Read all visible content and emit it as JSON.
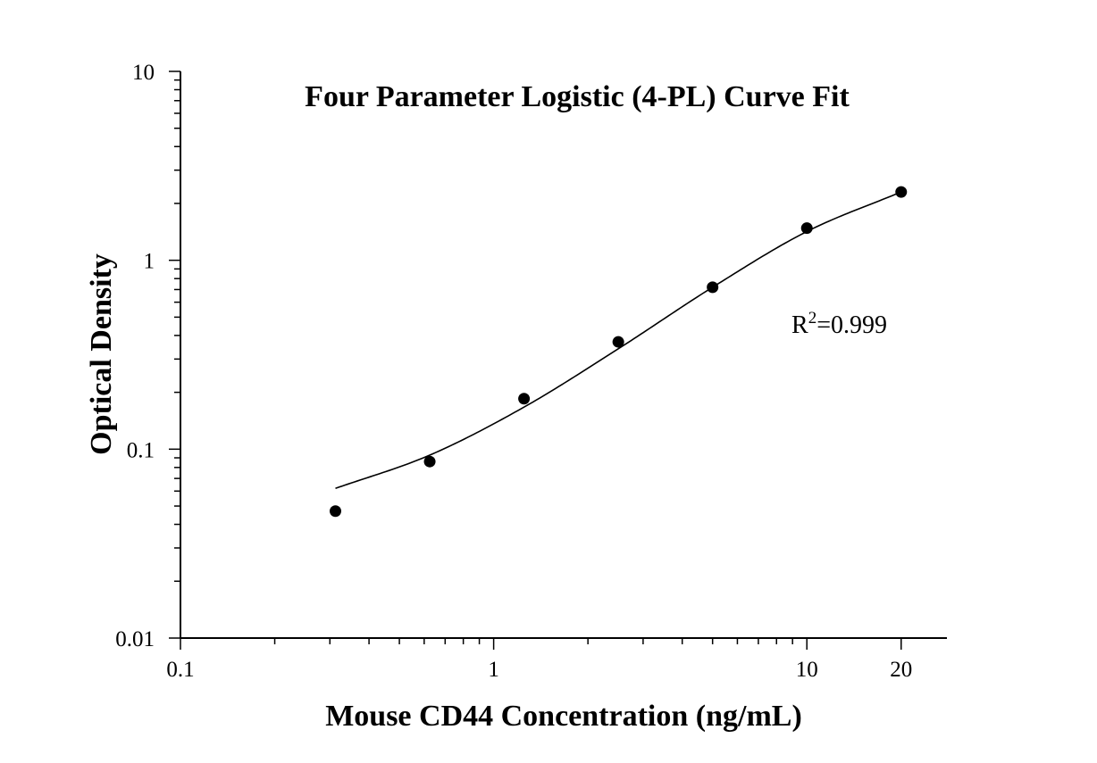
{
  "chart_data": {
    "type": "scatter",
    "title": "Four Parameter Logistic (4-PL) Curve Fit",
    "xlabel": "Mouse CD44 Concentration (ng/mL)",
    "ylabel": "Optical Density",
    "x_scale": "log",
    "y_scale": "log",
    "xlim": [
      0.1,
      28
    ],
    "ylim": [
      0.01,
      10
    ],
    "x_ticks": [
      {
        "value": 0.1,
        "label": "0.1"
      },
      {
        "value": 1,
        "label": "1"
      },
      {
        "value": 10,
        "label": "10"
      },
      {
        "value": 20,
        "label": "20"
      }
    ],
    "y_ticks": [
      {
        "value": 0.01,
        "label": "0.01"
      },
      {
        "value": 0.1,
        "label": "0.1"
      },
      {
        "value": 1,
        "label": "1"
      },
      {
        "value": 10,
        "label": "10"
      }
    ],
    "points": {
      "x": [
        0.3125,
        0.625,
        1.25,
        2.5,
        5,
        10,
        20
      ],
      "y": [
        0.047,
        0.086,
        0.185,
        0.37,
        0.72,
        1.48,
        2.3
      ]
    },
    "fit_curve": {
      "x": [
        0.3125,
        0.625,
        1.25,
        2.5,
        5,
        10,
        20
      ],
      "y": [
        0.062,
        0.093,
        0.167,
        0.34,
        0.72,
        1.42,
        2.3
      ]
    },
    "annotation": {
      "base": "R",
      "sup": "2",
      "rest": "=0.999"
    },
    "grid": false,
    "legend": "none",
    "colors": {
      "marks": "#000000",
      "axes": "#000000",
      "background": "#ffffff"
    }
  }
}
